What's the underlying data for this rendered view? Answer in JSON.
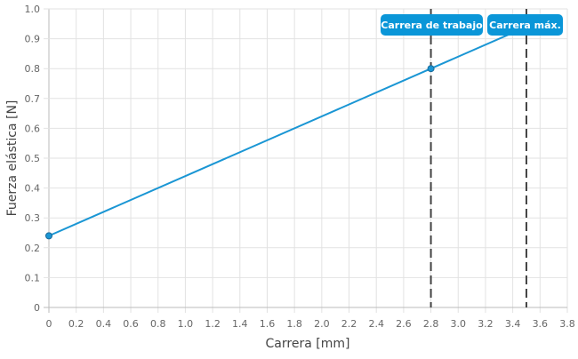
{
  "chart_data": {
    "type": "line",
    "xlabel": "Carrera [mm]",
    "ylabel": "Fuerza elástica [N]",
    "xlim": [
      0,
      3.8
    ],
    "ylim": [
      0,
      1.0
    ],
    "x_ticks": [
      "0",
      "0.2",
      "0.4",
      "0.6",
      "0.8",
      "1.0",
      "1.2",
      "1.4",
      "1.6",
      "1.8",
      "2.0",
      "2.2",
      "2.4",
      "2.6",
      "2.8",
      "3.0",
      "3.2",
      "3.4",
      "3.6",
      "3.8"
    ],
    "y_ticks": [
      "0",
      "0.1",
      "0.2",
      "0.3",
      "0.4",
      "0.5",
      "0.6",
      "0.7",
      "0.8",
      "0.9",
      "1.0"
    ],
    "grid": true,
    "series": [
      {
        "x": [
          0,
          2.8,
          3.5
        ],
        "y": [
          0.24,
          0.8,
          0.94
        ],
        "markers": [
          true,
          true,
          false
        ],
        "color": "#1a96d4"
      }
    ],
    "annotations": [
      {
        "label": "Carrera de trabajo",
        "x": 2.8
      },
      {
        "label": "Carrera máx.",
        "x": 3.5
      }
    ],
    "annotation_color": "#0a96d8"
  }
}
